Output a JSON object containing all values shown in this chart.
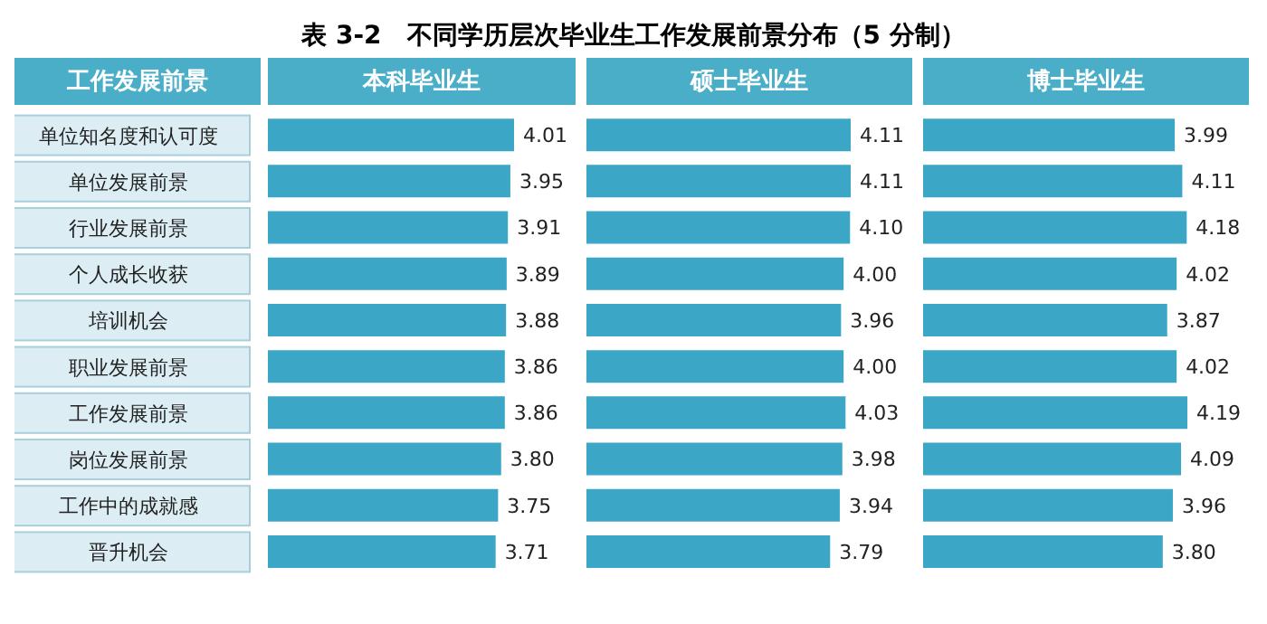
{
  "chart_data": [
    {
      "type": "bar",
      "orientation": "horizontal",
      "title": "本科毕业生",
      "ylabel": "工作发展前景",
      "annotations": [
        "表 3-2　不同学历层次毕业生工作发展前景分布（5 分制）"
      ],
      "categories": [
        "单位知名度和认可度",
        "单位发展前景",
        "行业发展前景",
        "个人成长收获",
        "培训机会",
        "职业发展前景",
        "工作发展前景",
        "岗位发展前景",
        "工作中的成就感",
        "晋升机会"
      ],
      "values": [
        4.01,
        3.95,
        3.91,
        3.89,
        3.88,
        3.86,
        3.86,
        3.8,
        3.75,
        3.71
      ],
      "value_labels": [
        "4.01",
        "3.95",
        "3.91",
        "3.89",
        "3.88",
        "3.86",
        "3.86",
        "3.80",
        "3.75",
        "3.71"
      ],
      "color": "#3ba6c6",
      "tick_labels": "y",
      "grid": false,
      "legend": false
    },
    {
      "type": "bar",
      "orientation": "horizontal",
      "title": "硕士毕业生",
      "values": [
        4.11,
        4.11,
        4.1,
        4.0,
        3.96,
        4.0,
        4.03,
        3.98,
        3.94,
        3.79
      ],
      "value_labels": [
        "4.11",
        "4.11",
        "4.10",
        "4.00",
        "3.96",
        "4.00",
        "4.03",
        "3.98",
        "3.94",
        "3.79"
      ],
      "color": "#3ba6c6",
      "tick_labels": false,
      "grid": false,
      "legend": false
    },
    {
      "type": "bar",
      "orientation": "horizontal",
      "title": "博士毕业生",
      "values": [
        3.99,
        4.11,
        4.18,
        4.02,
        3.87,
        4.02,
        4.19,
        4.09,
        3.96,
        3.8
      ],
      "value_labels": [
        "3.99",
        "4.11",
        "4.18",
        "4.02",
        "3.87",
        "4.02",
        "4.19",
        "4.09",
        "3.96",
        "3.80"
      ],
      "color": "#3ba6c6",
      "tick_labels": false,
      "grid": false,
      "legend": false
    }
  ]
}
